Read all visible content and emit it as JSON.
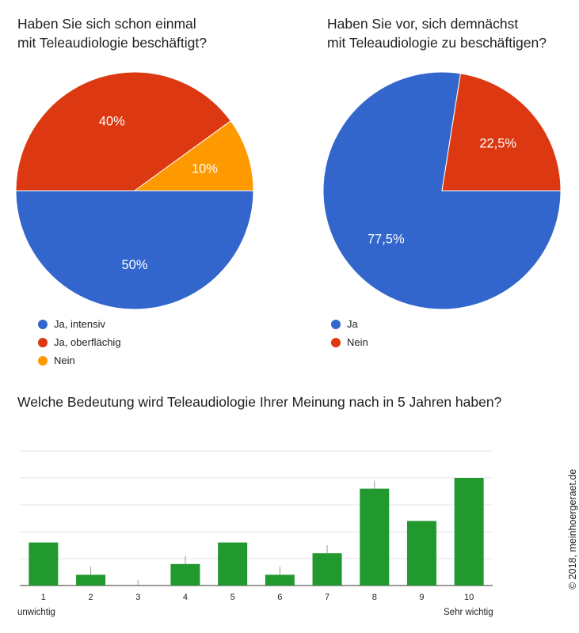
{
  "chart_data": [
    {
      "type": "pie",
      "title": "Haben Sie sich schon einmal\nmit Teleaudiologie beschäftigt?",
      "slices": [
        {
          "label": "Ja, intensiv",
          "value": 50,
          "display": "50%",
          "color": "#3366cc"
        },
        {
          "label": "Ja, oberflächig",
          "value": 40,
          "display": "40%",
          "color": "#dc3912"
        },
        {
          "label": "Nein",
          "value": 10,
          "display": "10%",
          "color": "#ff9900"
        }
      ],
      "legend": "bottom-left"
    },
    {
      "type": "pie",
      "title": "Haben Sie vor, sich demnächst\nmit Teleaudiologie zu beschäftigen?",
      "slices": [
        {
          "label": "Ja",
          "value": 77.5,
          "display": "77,5%",
          "color": "#3366cc"
        },
        {
          "label": "Nein",
          "value": 22.5,
          "display": "22,5%",
          "color": "#dc3912"
        }
      ],
      "legend": "bottom-left"
    },
    {
      "type": "bar",
      "title": "Welche Bedeutung wird Teleaudiologie Ihrer Meinung nach in 5 Jahren haben?",
      "categories": [
        "1",
        "2",
        "3",
        "4",
        "5",
        "6",
        "7",
        "8",
        "9",
        "10"
      ],
      "values": [
        8,
        2,
        0,
        4,
        8,
        2,
        6,
        18,
        12,
        20
      ],
      "error_upper": [
        8,
        3.5,
        1,
        5.5,
        8,
        3.5,
        7.5,
        19.5,
        12,
        20
      ],
      "ylim": [
        0,
        25
      ],
      "grid": true,
      "color": "#22992e",
      "x_start_label": "unwichtig",
      "x_end_label": "Sehr wichtig"
    }
  ],
  "copyright": "© 2018, meinhoergeraet.de"
}
